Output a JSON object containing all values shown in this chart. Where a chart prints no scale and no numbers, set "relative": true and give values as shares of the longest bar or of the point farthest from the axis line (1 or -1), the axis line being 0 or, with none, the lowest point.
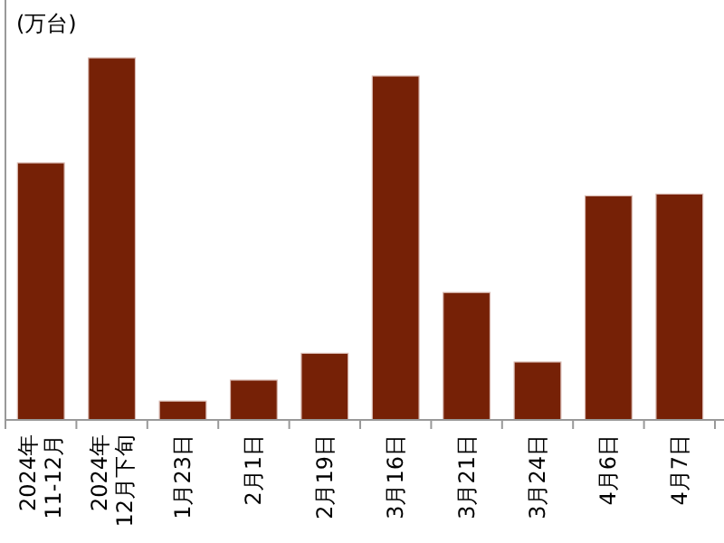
{
  "chart_data": {
    "type": "bar",
    "ylabel": "(万台)",
    "relative": true,
    "color": "#762106",
    "categories": [
      "2024年\n11-12月",
      "2024年\n12月下旬",
      "1月23日",
      "2月1日",
      "2月19日",
      "3月16日",
      "3月21日",
      "3月24日",
      "4月6日",
      "4月7日"
    ],
    "values": [
      0.71,
      1,
      0.052,
      0.11,
      0.184,
      0.95,
      0.352,
      0.16,
      0.619,
      0.624
    ]
  }
}
